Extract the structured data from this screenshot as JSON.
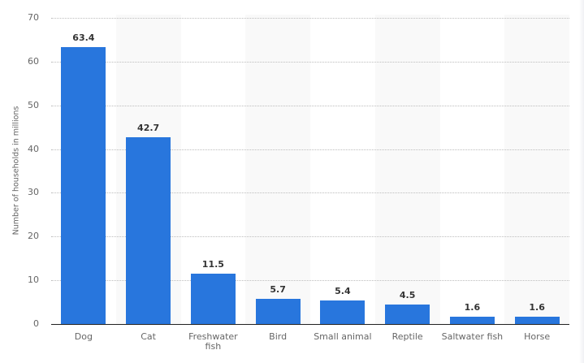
{
  "chart_data": {
    "type": "bar",
    "title": "",
    "xlabel": "",
    "ylabel": "Number of households in millions",
    "categories": [
      "Dog",
      "Cat",
      "Freshwater fish",
      "Bird",
      "Small animal",
      "Reptile",
      "Saltwater fish",
      "Horse"
    ],
    "category_display": [
      [
        "Dog"
      ],
      [
        "Cat"
      ],
      [
        "Freshwater",
        "fish"
      ],
      [
        "Bird"
      ],
      [
        "Small animal"
      ],
      [
        "Reptile"
      ],
      [
        "Saltwater fish"
      ],
      [
        "Horse"
      ]
    ],
    "values": [
      63.4,
      42.7,
      11.5,
      5.7,
      5.4,
      4.5,
      1.6,
      1.6
    ],
    "value_labels": [
      "63.4",
      "42.7",
      "11.5",
      "5.7",
      "5.4",
      "4.5",
      "1.6",
      "1.6"
    ],
    "ylim": [
      0,
      70
    ],
    "yticks": [
      0,
      10,
      20,
      30,
      40,
      50,
      60,
      70
    ],
    "grid": true,
    "legend": null,
    "colors": {
      "bar": "#2876dd",
      "band": "#f9f9f9",
      "grid": "#bdbdbd",
      "axis": "#222222"
    }
  }
}
